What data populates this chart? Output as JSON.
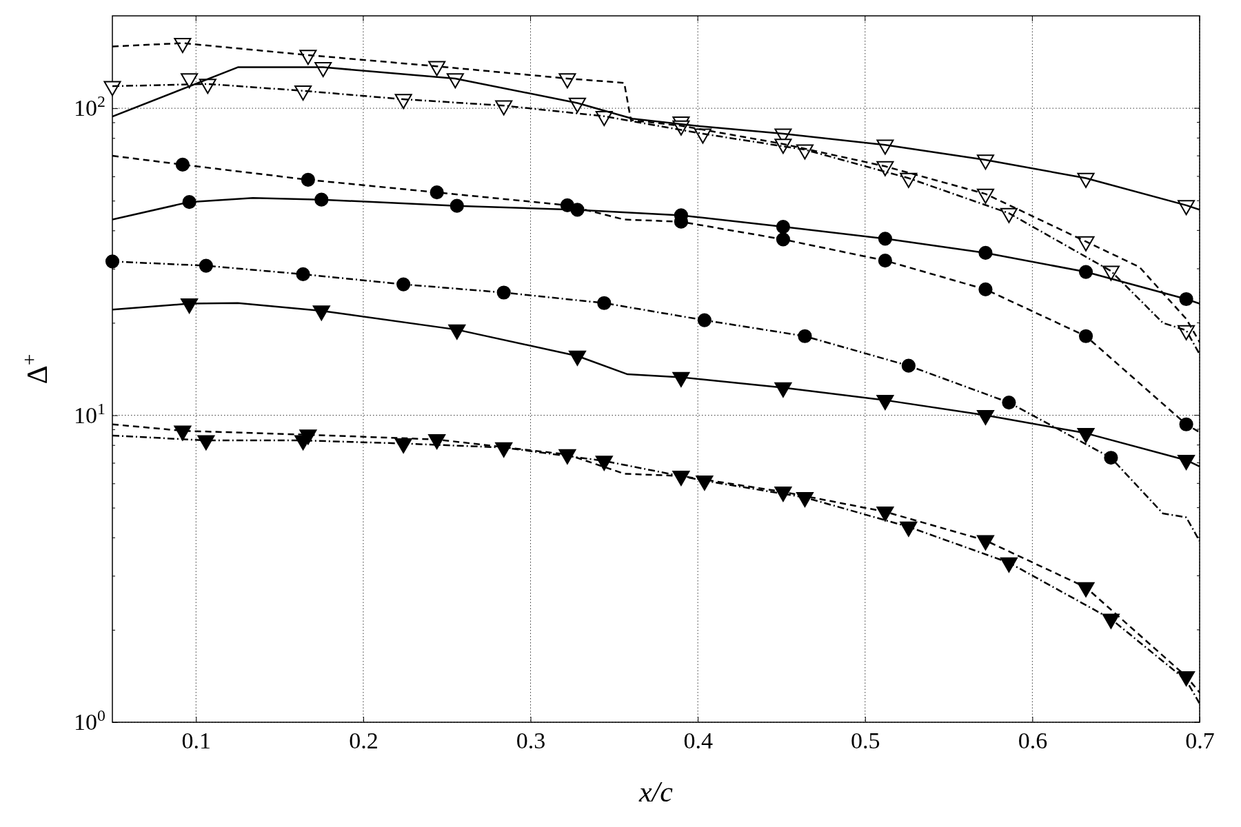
{
  "chart_data": {
    "type": "line",
    "xlabel": "x/c",
    "ylabel": "Δ$^{+}$",
    "xlim": [
      0.05,
      0.7
    ],
    "ylim": [
      1,
      200
    ],
    "log": "y",
    "grid": true,
    "xticks": [
      0.1,
      0.2,
      0.3,
      0.4,
      0.5,
      0.6,
      0.7
    ],
    "yticks": [
      {
        "value": 1,
        "label": "10$^{0}$"
      },
      {
        "value": 2,
        "label": null
      },
      {
        "value": 3,
        "label": null
      },
      {
        "value": 4,
        "label": null
      },
      {
        "value": 5,
        "label": null
      },
      {
        "value": 6,
        "label": null
      },
      {
        "value": 7,
        "label": null
      },
      {
        "value": 8,
        "label": null
      },
      {
        "value": 9,
        "label": null
      },
      {
        "value": 10,
        "label": "10$^{1}$"
      },
      {
        "value": 20,
        "label": null
      },
      {
        "value": 30,
        "label": null
      },
      {
        "value": 40,
        "label": null
      },
      {
        "value": 50,
        "label": null
      },
      {
        "value": 60,
        "label": null
      },
      {
        "value": 70,
        "label": null
      },
      {
        "value": 80,
        "label": null
      },
      {
        "value": 90,
        "label": null
      },
      {
        "value": 100,
        "label": "10$^{2}$"
      }
    ],
    "series": [
      {
        "line_style": "solid",
        "marker": "none",
        "color": "#000000",
        "x": [
          0.05,
          0.125,
          0.176,
          0.255,
          0.328,
          0.361,
          0.403,
          0.451,
          0.512,
          0.572,
          0.632,
          0.692,
          0.7
        ],
        "values": [
          94,
          136,
          136,
          125,
          104,
          92.5,
          87.2,
          82.6,
          76,
          67.9,
          59.2,
          48.3,
          46.7
        ]
      },
      {
        "type": "scatter",
        "marker": "triangle",
        "color": "#ffffff",
        "x": [
          0.096,
          0.176,
          0.255,
          0.328,
          0.39,
          0.451,
          0.512,
          0.572,
          0.632,
          0.692
        ],
        "values": [
          125,
          136,
          125,
          104,
          90.4,
          82.6,
          76,
          67.9,
          59.2,
          48.3
        ]
      },
      {
        "line_style": "dashed",
        "marker": "none",
        "color": "#000000",
        "x": [
          0.05,
          0.092,
          0.167,
          0.244,
          0.322,
          0.356,
          0.36,
          0.39,
          0.451,
          0.512,
          0.572,
          0.632,
          0.664,
          0.692,
          0.7
        ],
        "values": [
          159,
          163,
          149,
          137,
          125,
          121,
          91.5,
          87.7,
          76.5,
          64.7,
          52.6,
          36.8,
          30.4,
          20.6,
          17.3
        ]
      },
      {
        "type": "scatter",
        "marker": "triangle",
        "color": "#ffffff",
        "x": [
          0.092,
          0.167,
          0.244,
          0.322,
          0.39,
          0.451,
          0.512,
          0.572,
          0.632,
          0.692
        ],
        "values": [
          163,
          149,
          137,
          125,
          87.7,
          76.5,
          64.7,
          52.6,
          36.8,
          18.9
        ]
      },
      {
        "line_style": "dashdot",
        "marker": "none",
        "color": "#000000",
        "x": [
          0.05,
          0.107,
          0.164,
          0.224,
          0.284,
          0.344,
          0.403,
          0.464,
          0.526,
          0.586,
          0.647,
          0.678,
          0.692,
          0.7
        ],
        "values": [
          118,
          120,
          114,
          107,
          102,
          94.2,
          82.6,
          73.3,
          59.2,
          45.5,
          29.5,
          20,
          18.9,
          15.8
        ]
      },
      {
        "type": "scatter",
        "marker": "triangle",
        "color": "#ffffff",
        "x": [
          0.05,
          0.107,
          0.164,
          0.224,
          0.284,
          0.344,
          0.403,
          0.464,
          0.526,
          0.586,
          0.647
        ],
        "values": [
          118,
          120,
          114,
          107,
          102,
          94.2,
          82.6,
          73.3,
          59.2,
          45.5,
          29.5
        ]
      },
      {
        "line_style": "dashed",
        "marker": "none",
        "color": "#000000",
        "x": [
          0.05,
          0.092,
          0.167,
          0.244,
          0.322,
          0.356,
          0.39,
          0.451,
          0.512,
          0.572,
          0.632,
          0.692,
          0.7
        ],
        "values": [
          70,
          65.5,
          58.5,
          53.2,
          48.3,
          43.4,
          42.7,
          37.4,
          31.9,
          25.7,
          18.1,
          9.34,
          8.8
        ]
      },
      {
        "type": "scatter",
        "marker": "circle",
        "color": "#000000",
        "x": [
          0.092,
          0.167,
          0.244,
          0.322,
          0.39,
          0.451,
          0.512,
          0.572,
          0.632,
          0.692
        ],
        "values": [
          65.5,
          58.5,
          53.2,
          48.3,
          42.7,
          37.4,
          31.9,
          25.7,
          18.1,
          9.34
        ]
      },
      {
        "line_style": "solid",
        "marker": "none",
        "color": "#000000",
        "x": [
          0.05,
          0.096,
          0.134,
          0.175,
          0.256,
          0.328,
          0.39,
          0.451,
          0.512,
          0.572,
          0.632,
          0.692,
          0.7
        ],
        "values": [
          43.4,
          49.5,
          51,
          50.4,
          48.1,
          46.7,
          44.8,
          41.1,
          37.6,
          33.8,
          29.3,
          23.9,
          23.1
        ]
      },
      {
        "type": "scatter",
        "marker": "circle",
        "color": "#000000",
        "x": [
          0.096,
          0.175,
          0.256,
          0.328,
          0.39,
          0.451,
          0.512,
          0.572,
          0.632,
          0.692
        ],
        "values": [
          49.5,
          50.4,
          48.1,
          46.7,
          44.8,
          41.1,
          37.6,
          33.8,
          29.3,
          23.9
        ]
      },
      {
        "line_style": "dashdot",
        "marker": "none",
        "color": "#000000",
        "x": [
          0.05,
          0.106,
          0.164,
          0.224,
          0.284,
          0.344,
          0.404,
          0.464,
          0.526,
          0.586,
          0.647,
          0.678,
          0.692,
          0.7
        ],
        "values": [
          31.7,
          30.7,
          28.8,
          26.7,
          25.1,
          23.2,
          20.4,
          18.1,
          14.5,
          11,
          7.27,
          4.79,
          4.65,
          3.89
        ]
      },
      {
        "type": "scatter",
        "marker": "circle",
        "color": "#000000",
        "x": [
          0.05,
          0.106,
          0.164,
          0.224,
          0.284,
          0.344,
          0.404,
          0.464,
          0.526,
          0.586,
          0.647
        ],
        "values": [
          31.7,
          30.7,
          28.8,
          26.7,
          25.1,
          23.2,
          20.4,
          18.1,
          14.5,
          11,
          7.27
        ]
      },
      {
        "line_style": "solid",
        "marker": "none",
        "color": "#000000",
        "x": [
          0.05,
          0.096,
          0.125,
          0.175,
          0.256,
          0.328,
          0.358,
          0.39,
          0.451,
          0.512,
          0.572,
          0.632,
          0.692,
          0.7
        ],
        "values": [
          22.1,
          23.1,
          23.2,
          21.9,
          19,
          15.6,
          13.6,
          13.3,
          12.3,
          11.2,
          10,
          8.74,
          7.14,
          6.81
        ]
      },
      {
        "type": "scatter",
        "marker": "triangle",
        "color": "#000000",
        "x": [
          0.096,
          0.175,
          0.256,
          0.328,
          0.39,
          0.451,
          0.512,
          0.572,
          0.632,
          0.692
        ],
        "values": [
          23.1,
          21.9,
          19,
          15.6,
          13.3,
          12.3,
          11.2,
          10,
          8.74,
          7.14
        ]
      },
      {
        "line_style": "dashed",
        "marker": "none",
        "color": "#000000",
        "x": [
          0.05,
          0.092,
          0.167,
          0.244,
          0.322,
          0.356,
          0.39,
          0.451,
          0.512,
          0.572,
          0.632,
          0.692,
          0.7
        ],
        "values": [
          9.34,
          8.9,
          8.64,
          8.34,
          7.45,
          6.45,
          6.34,
          5.63,
          4.85,
          3.91,
          2.75,
          1.41,
          1.25
        ]
      },
      {
        "type": "scatter",
        "marker": "triangle",
        "color": "#000000",
        "x": [
          0.092,
          0.167,
          0.244,
          0.322,
          0.39,
          0.451,
          0.512,
          0.572,
          0.632,
          0.692
        ],
        "values": [
          8.9,
          8.64,
          8.34,
          7.45,
          6.34,
          5.63,
          4.85,
          3.91,
          2.75,
          1.41
        ]
      },
      {
        "line_style": "dashdot",
        "marker": "none",
        "color": "#000000",
        "x": [
          0.05,
          0.106,
          0.164,
          0.224,
          0.284,
          0.344,
          0.404,
          0.464,
          0.526,
          0.586,
          0.647,
          0.692,
          0.7
        ],
        "values": [
          8.59,
          8.28,
          8.28,
          8.09,
          7.85,
          7.1,
          6.12,
          5.4,
          4.33,
          3.31,
          2.17,
          1.37,
          1.15
        ]
      },
      {
        "type": "scatter",
        "marker": "triangle",
        "color": "#000000",
        "x": [
          0.106,
          0.164,
          0.224,
          0.284,
          0.344,
          0.404,
          0.464,
          0.526,
          0.586,
          0.647
        ],
        "values": [
          8.28,
          8.28,
          8.09,
          7.85,
          7.1,
          6.12,
          5.4,
          4.33,
          3.31,
          2.17
        ]
      }
    ]
  }
}
